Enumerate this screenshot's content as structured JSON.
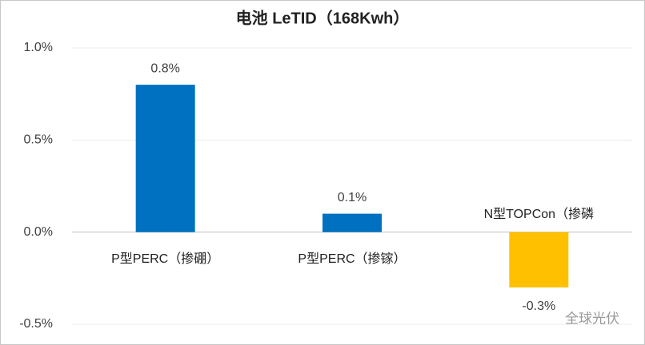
{
  "chart_data": {
    "type": "bar",
    "title": "电池 LeTID（168Kwh）",
    "categories": [
      "P型PERC（掺硼）",
      "P型PERC（掺镓）",
      "N型TOPCon（掺磷"
    ],
    "values": [
      0.8,
      0.1,
      -0.3
    ],
    "value_labels": [
      "0.8%",
      "0.1%",
      "-0.3%"
    ],
    "colors": [
      "#0070c0",
      "#0070c0",
      "#ffc000"
    ],
    "ylim": [
      -0.5,
      1.0
    ],
    "yticks": [
      {
        "value": 1.0,
        "label": "1.0%"
      },
      {
        "value": 0.5,
        "label": "0.5%"
      },
      {
        "value": 0,
        "label": "0.0%"
      },
      {
        "value": -0.5,
        "label": "-0.5%"
      }
    ],
    "grid": true,
    "watermark": "全球光伏"
  }
}
